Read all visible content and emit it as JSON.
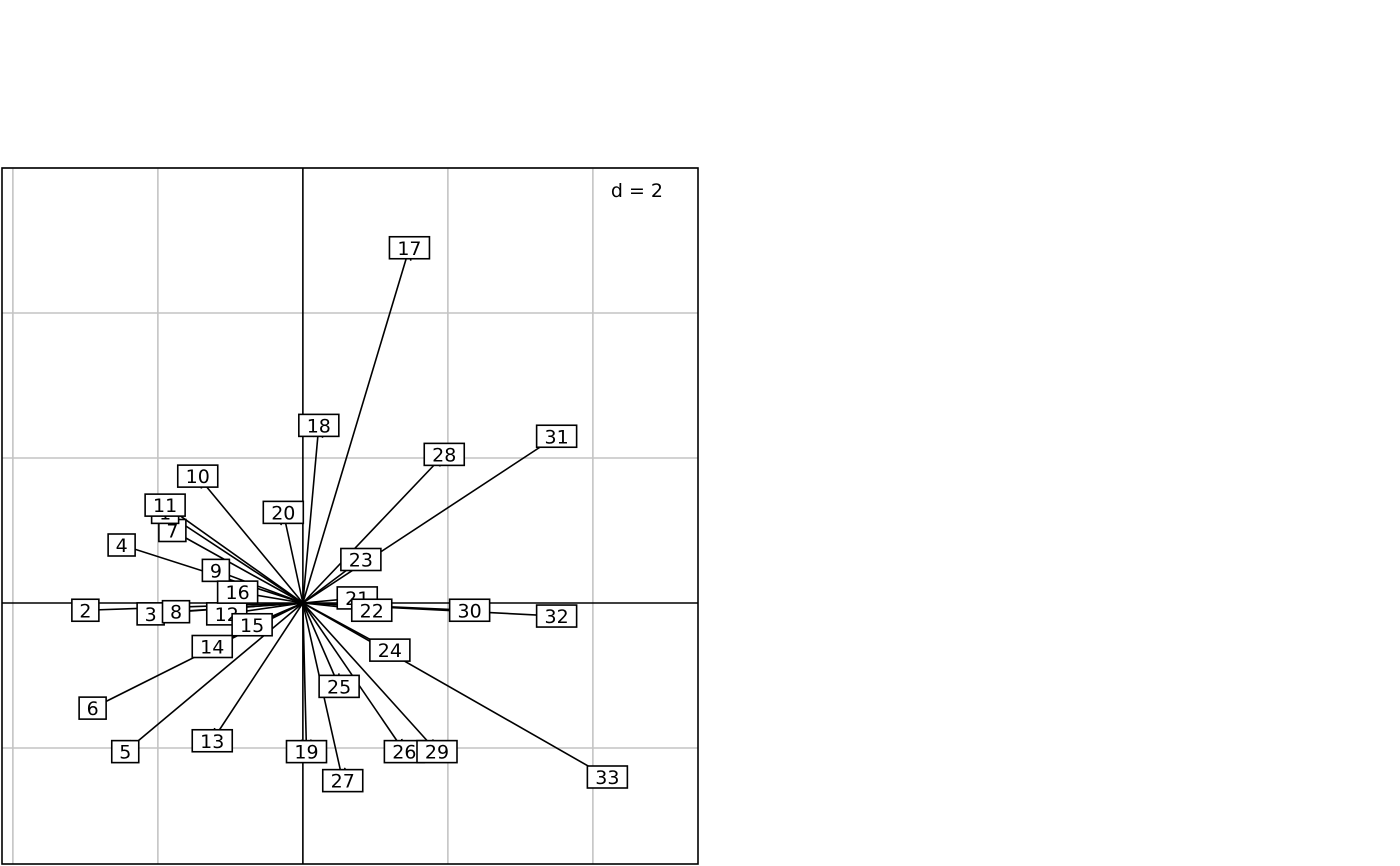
{
  "chart_data": {
    "type": "scatter",
    "xlim": [
      -4.15,
      5.45
    ],
    "ylim": [
      -3.6,
      6.0
    ],
    "grid_step": 2,
    "grid": true,
    "scale_label": "d = 2",
    "origin": [
      0,
      0
    ],
    "points": [
      {
        "label": "2",
        "x": -3.0,
        "y": -0.1
      },
      {
        "label": "3",
        "x": -2.1,
        "y": -0.15
      },
      {
        "label": "8",
        "x": -1.75,
        "y": -0.12
      },
      {
        "label": "12",
        "x": -1.05,
        "y": -0.15
      },
      {
        "label": "4",
        "x": -2.5,
        "y": 0.8
      },
      {
        "label": "5",
        "x": -2.45,
        "y": -2.05
      },
      {
        "label": "6",
        "x": -2.9,
        "y": -1.45
      },
      {
        "label": "7",
        "x": -1.8,
        "y": 1.0
      },
      {
        "label": "1",
        "x": -1.9,
        "y": 1.25
      },
      {
        "label": "11",
        "x": -1.9,
        "y": 1.35
      },
      {
        "label": "10",
        "x": -1.45,
        "y": 1.75
      },
      {
        "label": "9",
        "x": -1.2,
        "y": 0.45
      },
      {
        "label": "16",
        "x": -0.9,
        "y": 0.15
      },
      {
        "label": "15",
        "x": -0.7,
        "y": -0.3
      },
      {
        "label": "14",
        "x": -1.25,
        "y": -0.6
      },
      {
        "label": "13",
        "x": -1.25,
        "y": -1.9
      },
      {
        "label": "18",
        "x": 0.22,
        "y": 2.45
      },
      {
        "label": "20",
        "x": -0.27,
        "y": 1.25
      },
      {
        "label": "17",
        "x": 1.47,
        "y": 4.9
      },
      {
        "label": "19",
        "x": 0.05,
        "y": -2.05
      },
      {
        "label": "21",
        "x": 0.75,
        "y": 0.07
      },
      {
        "label": "22",
        "x": 0.95,
        "y": -0.1
      },
      {
        "label": "23",
        "x": 0.8,
        "y": 0.6
      },
      {
        "label": "24",
        "x": 1.2,
        "y": -0.65
      },
      {
        "label": "25",
        "x": 0.5,
        "y": -1.15
      },
      {
        "label": "26",
        "x": 1.4,
        "y": -2.05
      },
      {
        "label": "27",
        "x": 0.55,
        "y": -2.45
      },
      {
        "label": "28",
        "x": 1.95,
        "y": 2.05
      },
      {
        "label": "29",
        "x": 1.85,
        "y": -2.05
      },
      {
        "label": "30",
        "x": 2.3,
        "y": -0.1
      },
      {
        "label": "31",
        "x": 3.5,
        "y": 2.3
      },
      {
        "label": "32",
        "x": 3.5,
        "y": -0.18
      },
      {
        "label": "33",
        "x": 4.2,
        "y": -2.4
      }
    ]
  }
}
